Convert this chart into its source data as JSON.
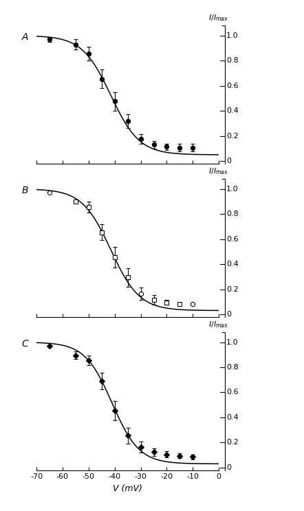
{
  "panels": [
    "A",
    "B",
    "C"
  ],
  "xlim": [
    -70,
    0
  ],
  "ylim": [
    -0.02,
    1.08
  ],
  "xticks": [
    -70,
    -60,
    -50,
    -40,
    -30,
    -20,
    -10,
    0
  ],
  "ytick_vals": [
    0,
    0.2,
    0.4,
    0.6,
    0.8,
    1.0
  ],
  "ytick_labels": [
    "0",
    "0.2",
    "0.4",
    "0.6",
    "0.8",
    "1.0"
  ],
  "xlabel": "V (mV)",
  "bg_color": "#ffffff",
  "line_color": "#000000",
  "fontsize_label": 9,
  "fontsize_tick": 8,
  "fontsize_panel": 10,
  "panels_data": {
    "A": {
      "x": [
        -65,
        -55,
        -50,
        -45,
        -40,
        -35,
        -30,
        -25,
        -20,
        -15,
        -10
      ],
      "y": [
        0.97,
        0.93,
        0.855,
        0.655,
        0.475,
        0.32,
        0.175,
        0.13,
        0.115,
        0.105,
        0.105
      ],
      "yerr": [
        0.02,
        0.04,
        0.055,
        0.075,
        0.075,
        0.055,
        0.04,
        0.03,
        0.025,
        0.03,
        0.03
      ],
      "markers": [
        "fo",
        "fo",
        "fo",
        "fo",
        "fo",
        "fo",
        "fo",
        "fo",
        "fo",
        "fo",
        "fo"
      ],
      "v50": -41.5,
      "k": 5.5,
      "ymin": 0.05
    },
    "B": {
      "x": [
        -65,
        -55,
        -50,
        -45,
        -40,
        -35,
        -30,
        -25,
        -20,
        -15,
        -10
      ],
      "y": [
        0.97,
        0.9,
        0.855,
        0.655,
        0.455,
        0.295,
        0.165,
        0.115,
        0.095,
        0.085,
        0.08
      ],
      "yerr": [
        0.0,
        0.0,
        0.045,
        0.065,
        0.08,
        0.075,
        0.05,
        0.04,
        0.02,
        0.0,
        0.0
      ],
      "markers": [
        "oc",
        "os",
        "os",
        "os",
        "os",
        "os",
        "oc",
        "os",
        "os",
        "os",
        "oc"
      ],
      "v50": -41.5,
      "k": 5.5,
      "ymin": 0.03
    },
    "C": {
      "x": [
        -65,
        -55,
        -50,
        -45,
        -40,
        -35,
        -30,
        -25,
        -20,
        -15,
        -10
      ],
      "y": [
        0.97,
        0.895,
        0.855,
        0.69,
        0.455,
        0.255,
        0.165,
        0.125,
        0.105,
        0.095,
        0.085
      ],
      "yerr": [
        0.0,
        0.03,
        0.04,
        0.065,
        0.075,
        0.065,
        0.045,
        0.03,
        0.025,
        0.02,
        0.02
      ],
      "markers": [
        "fd",
        "fd",
        "fd",
        "fd",
        "fd",
        "fd",
        "fd",
        "fd",
        "fd",
        "fd",
        "fd"
      ],
      "v50": -41.0,
      "k": 5.2,
      "ymin": 0.03
    }
  }
}
